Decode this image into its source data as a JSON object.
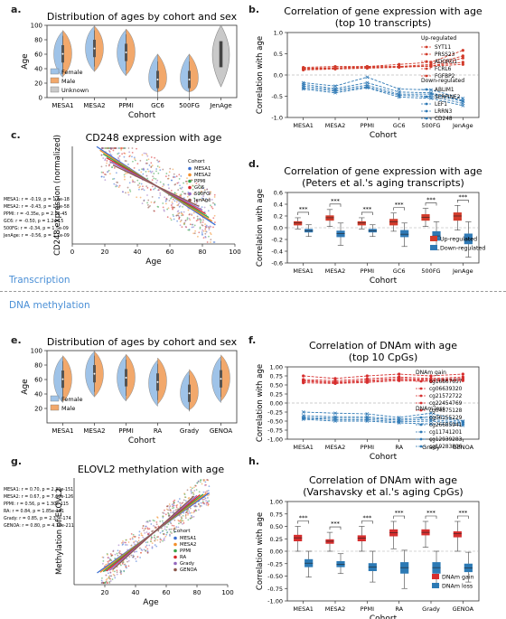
{
  "panel_letters": {
    "a": "a.",
    "b": "b.",
    "c": "c.",
    "d": "d.",
    "e": "e.",
    "f": "f.",
    "g": "g.",
    "h": "h."
  },
  "section_labels": {
    "transcription": "Transcription",
    "dna_methylation": "DNA methylation"
  },
  "colors": {
    "female": "#9fc3e8",
    "male": "#f2a86b",
    "unknown": "#c9c9c9",
    "up": "#d23b2b",
    "down": "#2f79b5",
    "gain": "#d62e2e",
    "loss": "#2c7ab5"
  },
  "chart_data": [
    {
      "id": "a",
      "type": "violin",
      "title": "Distribution of ages by cohort and sex",
      "xlabel": "Cohort",
      "ylabel": "Age",
      "ylim": [
        0,
        100
      ],
      "yticks": [
        "0",
        "20",
        "40",
        "60",
        "80",
        "100"
      ],
      "categories": [
        "MESA1",
        "MESA2",
        "PPMI",
        "GC6",
        "500FG",
        "JenAge"
      ],
      "legend": [
        "Female",
        "Male",
        "Unknown"
      ],
      "series": [
        {
          "name": "Female",
          "medians": [
            60,
            68,
            62,
            25,
            25,
            null
          ]
        },
        {
          "name": "Male",
          "medians": [
            61,
            68,
            63,
            25,
            25,
            null
          ]
        },
        {
          "name": "Unknown",
          "medians": [
            null,
            null,
            null,
            null,
            null,
            60
          ]
        }
      ]
    },
    {
      "id": "b",
      "type": "line",
      "title": "Correlation of gene expression with age",
      "subtitle": "(top 10 transcripts)",
      "xlabel": "Cohort",
      "ylabel": "Correlation with age",
      "ylim": [
        -1.0,
        1.0
      ],
      "yticks": [
        "-1.0",
        "-0.5",
        "0.0",
        "0.5",
        "1.0"
      ],
      "categories": [
        "MESA1",
        "MESA2",
        "PPMI",
        "GC6",
        "500FG",
        "JenAge"
      ],
      "legend_up_title": "Up-regulated",
      "legend_down_title": "Down-regulated",
      "up_series": [
        {
          "name": "SYT11",
          "values": [
            0.18,
            0.2,
            0.2,
            0.25,
            0.3,
            0.58
          ]
        },
        {
          "name": "PRSS23",
          "values": [
            0.16,
            0.17,
            0.2,
            0.2,
            0.25,
            0.45
          ]
        },
        {
          "name": "ADGRG1",
          "values": [
            0.15,
            0.16,
            0.18,
            0.2,
            0.2,
            0.4
          ]
        },
        {
          "name": "FCRL6",
          "values": [
            0.13,
            0.16,
            0.17,
            0.19,
            0.22,
            0.3
          ]
        },
        {
          "name": "FGFBP2",
          "values": [
            0.12,
            0.14,
            0.16,
            0.18,
            0.21,
            0.25
          ]
        }
      ],
      "down_series": [
        {
          "name": "ABLIM1",
          "values": [
            -0.18,
            -0.26,
            -0.05,
            -0.33,
            -0.35,
            -0.55
          ]
        },
        {
          "name": "SERPINE2",
          "values": [
            -0.22,
            -0.32,
            -0.18,
            -0.4,
            -0.42,
            -0.6
          ]
        },
        {
          "name": "LEF1",
          "values": [
            -0.26,
            -0.35,
            -0.24,
            -0.45,
            -0.45,
            -0.62
          ]
        },
        {
          "name": "LRRN3",
          "values": [
            -0.3,
            -0.38,
            -0.28,
            -0.48,
            -0.5,
            -0.67
          ]
        },
        {
          "name": "CD248",
          "values": [
            -0.33,
            -0.42,
            -0.3,
            -0.52,
            -0.55,
            -0.72
          ]
        }
      ]
    },
    {
      "id": "c",
      "type": "scatter",
      "title": "CD248 expression with age",
      "xlabel": "Age",
      "ylabel": "CD248 expression (normalized)",
      "xlim": [
        0,
        100
      ],
      "xticks": [
        "0",
        "20",
        "40",
        "60",
        "80",
        "100"
      ],
      "legend_title": "Cohort",
      "series": [
        {
          "name": "MESA1",
          "color": "#3b6fd1"
        },
        {
          "name": "MESA2",
          "color": "#f28e2b"
        },
        {
          "name": "PPMI",
          "color": "#3aa34a"
        },
        {
          "name": "GC6",
          "color": "#d62728"
        },
        {
          "name": "500FG",
          "color": "#9467bd"
        },
        {
          "name": "JenAge",
          "color": "#8c564b"
        }
      ],
      "annotations": [
        "MESA1: r = -0.19, p = 1.1e-18",
        "MESA2: r = -0.43, p = 1.9e-58",
        "PPMI: r = -0.35e, p = 2.0e-45",
        "GC6: r = -0.50, p = 1.2e-15",
        "500FG: r = -0.34, p = 1.5e-09",
        "JenAge: r = -0.56, p = 1.7e-09"
      ]
    },
    {
      "id": "d",
      "type": "box",
      "title": "Correlation of gene expression with age",
      "subtitle": "(Peters et al.'s aging transcripts)",
      "xlabel": "Cohort",
      "ylabel": "Correlation with age",
      "ylim": [
        -0.6,
        0.6
      ],
      "yticks": [
        "-0.6",
        "-0.4",
        "-0.2",
        "0.0",
        "0.2",
        "0.4",
        "0.6"
      ],
      "categories": [
        "MESA1",
        "MESA2",
        "PPMI",
        "GC6",
        "500FG",
        "JenAge"
      ],
      "significance": "***",
      "series": [
        {
          "name": "Up-regulated",
          "boxes": [
            {
              "min": -0.02,
              "q1": 0.04,
              "med": 0.08,
              "q3": 0.11,
              "max": 0.17
            },
            {
              "min": 0.02,
              "q1": 0.12,
              "med": 0.17,
              "q3": 0.21,
              "max": 0.31
            },
            {
              "min": -0.02,
              "q1": 0.04,
              "med": 0.08,
              "q3": 0.11,
              "max": 0.17
            },
            {
              "min": -0.06,
              "q1": 0.04,
              "med": 0.1,
              "q3": 0.15,
              "max": 0.25
            },
            {
              "min": 0.02,
              "q1": 0.12,
              "med": 0.18,
              "q3": 0.23,
              "max": 0.33
            },
            {
              "min": -0.04,
              "q1": 0.12,
              "med": 0.2,
              "q3": 0.26,
              "max": 0.38
            }
          ]
        },
        {
          "name": "Down-regulated",
          "boxes": [
            {
              "min": -0.15,
              "q1": -0.08,
              "med": -0.05,
              "q3": -0.02,
              "max": 0.05
            },
            {
              "min": -0.3,
              "q1": -0.16,
              "med": -0.1,
              "q3": -0.05,
              "max": 0.08
            },
            {
              "min": -0.15,
              "q1": -0.08,
              "med": -0.05,
              "q3": -0.02,
              "max": 0.05
            },
            {
              "min": -0.32,
              "q1": -0.16,
              "med": -0.11,
              "q3": -0.04,
              "max": 0.08
            },
            {
              "min": -0.38,
              "q1": -0.22,
              "med": -0.14,
              "q3": -0.06,
              "max": 0.1
            },
            {
              "min": -0.5,
              "q1": -0.28,
              "med": -0.2,
              "q3": -0.1,
              "max": 0.1
            }
          ]
        }
      ]
    },
    {
      "id": "e",
      "type": "violin",
      "title": "Distribution of ages by cohort and sex",
      "xlabel": "Cohort",
      "ylabel": "Age",
      "ylim": [
        0,
        100
      ],
      "yticks": [
        "20",
        "40",
        "60",
        "80",
        "100"
      ],
      "categories": [
        "MESA1",
        "MESA2",
        "PPMI",
        "RA",
        "Grady",
        "GENOA"
      ],
      "legend": [
        "Female",
        "Male"
      ],
      "series": [
        {
          "name": "Female",
          "medians": [
            60,
            68,
            62,
            55,
            40,
            60
          ]
        },
        {
          "name": "Male",
          "medians": [
            61,
            68,
            63,
            58,
            42,
            62
          ]
        }
      ]
    },
    {
      "id": "f",
      "type": "line",
      "title": "Correlation of DNAm with age",
      "subtitle": "(top 10 CpGs)",
      "xlabel": "Cohort",
      "ylabel": "Correlation with age",
      "ylim": [
        -1.0,
        1.0
      ],
      "yticks": [
        "-1.00",
        "-0.75",
        "-0.50",
        "-0.25",
        "0.00",
        "0.25",
        "0.50",
        "0.75",
        "1.00"
      ],
      "categories": [
        "MESA1",
        "MESA2",
        "PPMI",
        "RA",
        "Grady",
        "GENOA"
      ],
      "legend_up_title": "DNAm gain",
      "legend_down_title": "DNAm loss",
      "up_series": [
        {
          "name": "cg16867657",
          "values": [
            0.75,
            0.68,
            0.75,
            0.8,
            0.75,
            0.8
          ]
        },
        {
          "name": "cg06639320",
          "values": [
            0.65,
            0.62,
            0.67,
            0.72,
            0.68,
            0.72
          ]
        },
        {
          "name": "cg21572722",
          "values": [
            0.62,
            0.58,
            0.63,
            0.68,
            0.65,
            0.68
          ]
        },
        {
          "name": "cg22454769",
          "values": [
            0.6,
            0.56,
            0.6,
            0.65,
            0.63,
            0.65
          ]
        },
        {
          "name": "cg04875128",
          "values": [
            0.56,
            0.54,
            0.57,
            0.62,
            0.6,
            0.62
          ]
        }
      ],
      "down_series": [
        {
          "name": "cg06155229",
          "values": [
            -0.25,
            -0.28,
            -0.3,
            -0.4,
            -0.28,
            -0.5
          ]
        },
        {
          "name": "cg26685941",
          "values": [
            -0.35,
            -0.38,
            -0.38,
            -0.45,
            -0.38,
            -0.52
          ]
        },
        {
          "name": "cg11741201",
          "values": [
            -0.4,
            -0.42,
            -0.42,
            -0.48,
            -0.45,
            -0.55
          ]
        },
        {
          "name": "cg12939283",
          "values": [
            -0.42,
            -0.46,
            -0.46,
            -0.52,
            -0.5,
            -0.58
          ]
        },
        {
          "name": "cg19283806",
          "values": [
            -0.45,
            -0.5,
            -0.5,
            -0.55,
            -0.58,
            -0.62
          ]
        }
      ]
    },
    {
      "id": "g",
      "type": "scatter",
      "title": "ELOVL2 methylation with age",
      "xlabel": "Age",
      "ylabel": "Methylation of ELOVL2",
      "xlim": [
        0,
        100
      ],
      "xticks": [
        "20",
        "40",
        "60",
        "80",
        "100"
      ],
      "legend_title": "Cohort",
      "series": [
        {
          "name": "MESA1",
          "color": "#3b6fd1"
        },
        {
          "name": "MESA2",
          "color": "#f28e2b"
        },
        {
          "name": "PPMI",
          "color": "#3aa34a"
        },
        {
          "name": "RA",
          "color": "#d62728"
        },
        {
          "name": "Grady",
          "color": "#9467bd"
        },
        {
          "name": "GENOA",
          "color": "#8c564b"
        }
      ],
      "annotations": [
        "MESA1: r = 0.70, p = 2.39e-151",
        "MESA2: r = 0.67, p = 7.60e-126",
        "PPMI: r = 0.56, p = 1.30e-115",
        "RA: r = 0.84, p = 1.85e-181",
        "Grady: r = 0.85, p = 2.33e-174",
        "GENOA: r = 0.80, p = 4.16e-211"
      ]
    },
    {
      "id": "h",
      "type": "box",
      "title": "Correlation of DNAm with age",
      "subtitle": "(Varshavsky et al.'s aging CpGs)",
      "xlabel": "Cohort",
      "ylabel": "Correlation with age",
      "ylim": [
        -1.0,
        1.0
      ],
      "yticks": [
        "-1.00",
        "-0.75",
        "-0.50",
        "-0.25",
        "0.00",
        "0.25",
        "0.50",
        "0.75",
        "1.00"
      ],
      "categories": [
        "MESA1",
        "MESA2",
        "PPMI",
        "RA",
        "Grady",
        "GENOA"
      ],
      "significance": "***",
      "series": [
        {
          "name": "DNAm gain",
          "boxes": [
            {
              "min": 0.0,
              "q1": 0.2,
              "med": 0.27,
              "q3": 0.33,
              "max": 0.5
            },
            {
              "min": 0.0,
              "q1": 0.15,
              "med": 0.2,
              "q3": 0.24,
              "max": 0.38
            },
            {
              "min": 0.0,
              "q1": 0.2,
              "med": 0.26,
              "q3": 0.32,
              "max": 0.5
            },
            {
              "min": 0.05,
              "q1": 0.3,
              "med": 0.37,
              "q3": 0.44,
              "max": 0.6
            },
            {
              "min": 0.08,
              "q1": 0.32,
              "med": 0.38,
              "q3": 0.44,
              "max": 0.6
            },
            {
              "min": 0.0,
              "q1": 0.28,
              "med": 0.35,
              "q3": 0.4,
              "max": 0.6
            }
          ]
        },
        {
          "name": "DNAm loss",
          "boxes": [
            {
              "min": -0.52,
              "q1": -0.32,
              "med": -0.24,
              "q3": -0.16,
              "max": 0.0
            },
            {
              "min": -0.45,
              "q1": -0.32,
              "med": -0.26,
              "q3": -0.2,
              "max": -0.05
            },
            {
              "min": -0.62,
              "q1": -0.4,
              "med": -0.32,
              "q3": -0.24,
              "max": 0.0
            },
            {
              "min": -0.75,
              "q1": -0.45,
              "med": -0.33,
              "q3": -0.22,
              "max": 0.02
            },
            {
              "min": -0.68,
              "q1": -0.45,
              "med": -0.33,
              "q3": -0.22,
              "max": 0.0
            },
            {
              "min": -0.62,
              "q1": -0.42,
              "med": -0.34,
              "q3": -0.25,
              "max": -0.02
            }
          ]
        }
      ]
    }
  ]
}
